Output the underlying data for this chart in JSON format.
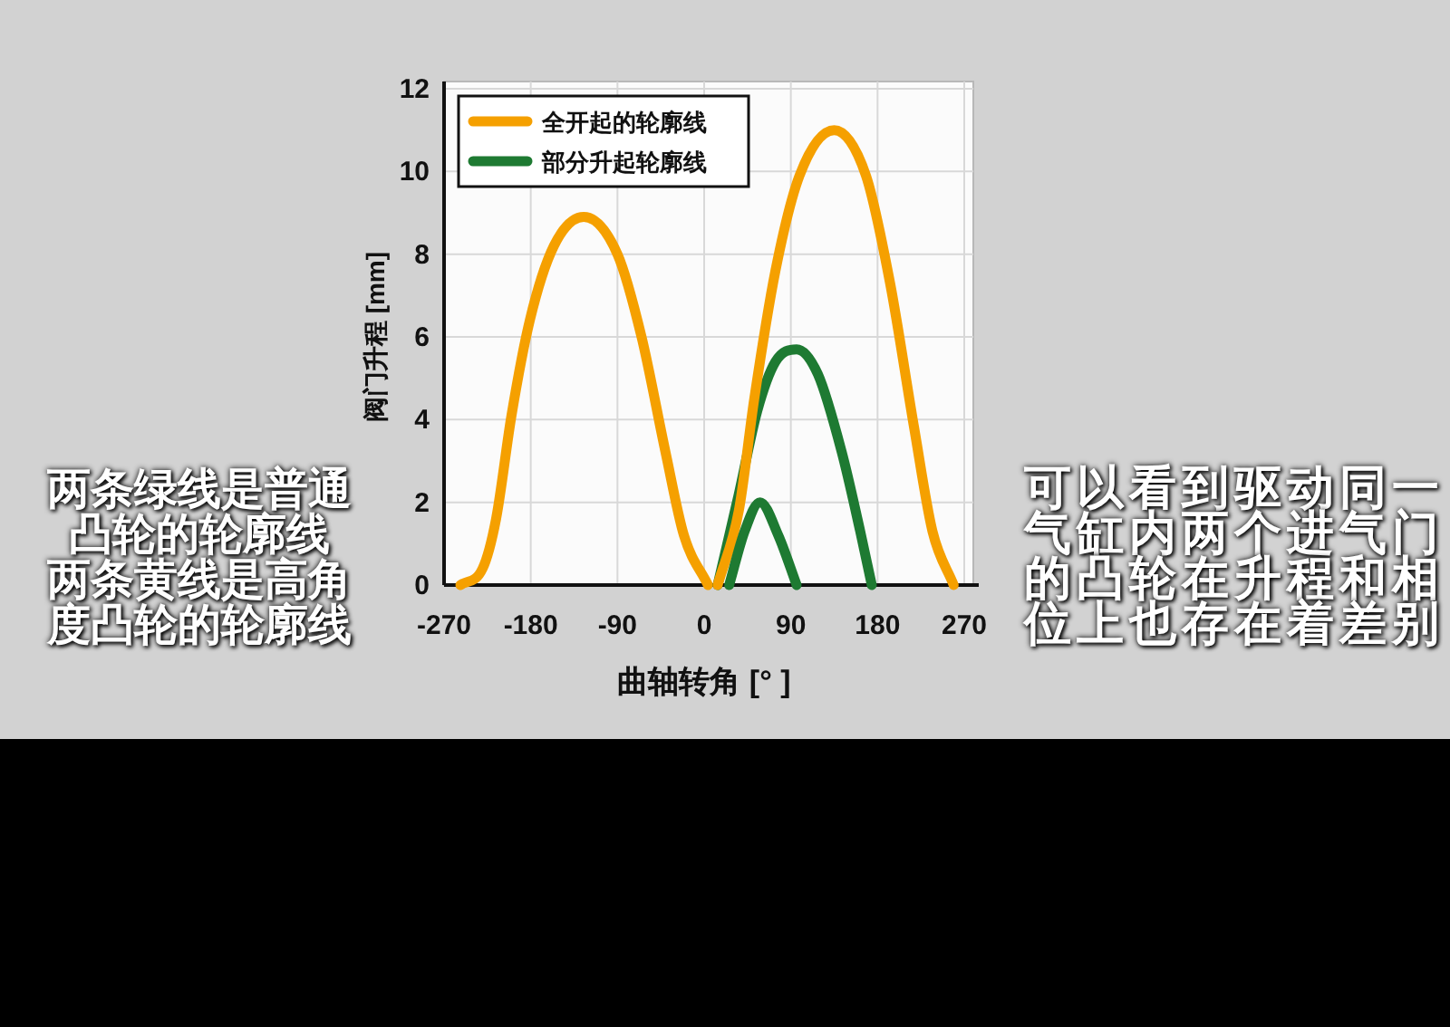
{
  "chart_data": {
    "type": "line",
    "xlabel": "曲轴转角 [° ]",
    "ylabel": "阀门升程 [mm]",
    "xlim": [
      -270,
      270
    ],
    "xticks": [
      -270,
      -180,
      -90,
      0,
      90,
      180,
      270
    ],
    "ylim": [
      0,
      12
    ],
    "yticks": [
      0,
      2,
      4,
      6,
      8,
      10,
      12
    ],
    "grid": true,
    "legend": "top left",
    "marker": "none",
    "line_style": "solid",
    "series": [
      {
        "name": "全开起的轮廓线",
        "color": "#f5a000",
        "x": [
          -253,
          -230,
          -216,
          -200,
          -181,
          -156,
          -125,
          -90,
          -65,
          -40,
          -21,
          4
        ],
        "values": [
          0,
          0.4,
          1.6,
          4.1,
          6.4,
          8.2,
          8.9,
          8.0,
          6.0,
          3.2,
          1.2,
          0
        ]
      },
      {
        "name": "部分升起轮廓线",
        "color": "#1e7a32",
        "x": [
          14,
          36,
          55,
          74,
          96,
          118,
          143,
          162,
          174
        ],
        "values": [
          0,
          2.2,
          4.2,
          5.4,
          5.7,
          5.1,
          3.2,
          1.3,
          0
        ]
      },
      {
        "color": "#f5a000",
        "x": [
          14,
          36,
          52,
          74,
          99,
          135,
          168,
          193,
          218,
          237,
          259
        ],
        "values": [
          0,
          1.8,
          4.5,
          7.6,
          9.9,
          11,
          9.9,
          7.3,
          3.8,
          1.3,
          0
        ]
      },
      {
        "color": "#1e7a32",
        "x": [
          26,
          42,
          58,
          77,
          96
        ],
        "values": [
          0,
          1.3,
          2,
          1.2,
          0
        ]
      }
    ],
    "annotations": [
      "两条绿线是普通凸轮的轮廓线",
      "两条黄线是高角度凸轮的轮廓线",
      "可以看到驱动同一气缸内两个进气门的凸轮在升程和相位上也存在着差别"
    ]
  }
}
